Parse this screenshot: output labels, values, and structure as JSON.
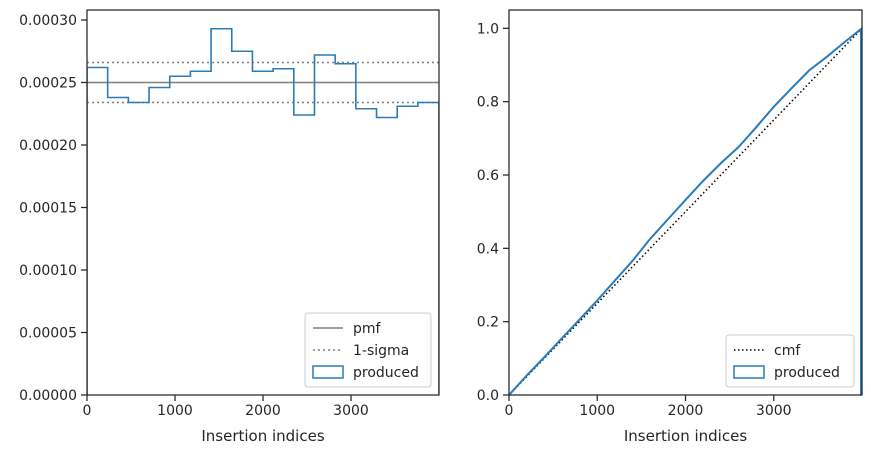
{
  "colors": {
    "produced": "#2b7bb9",
    "pmf": "#7f7f7f",
    "sigma": "#7f7f7f",
    "cmf": "#000000",
    "axes": "#262626"
  },
  "chart_data": [
    {
      "type": "histogram",
      "xlabel": "Insertion indices",
      "ylabel": "",
      "xlim": [
        0,
        4000
      ],
      "ylim": [
        0,
        0.000308
      ],
      "xticks": [
        0,
        1000,
        2000,
        3000
      ],
      "xtick_labels": [
        "0",
        "1000",
        "2000",
        "3000"
      ],
      "yticks": [
        0,
        5e-05,
        0.0001,
        0.00015,
        0.0002,
        0.00025,
        0.0003
      ],
      "ytick_labels": [
        "0.00000",
        "0.00005",
        "0.00010",
        "0.00015",
        "0.00020",
        "0.00025",
        "0.00030"
      ],
      "grid": false,
      "legend_position": "lower-right",
      "legend": [
        "pmf",
        "1-sigma",
        "produced"
      ],
      "pmf": 0.00025,
      "sigma_band": [
        0.000234,
        0.000266
      ],
      "produced": {
        "bin_edges": [
          0,
          235,
          470,
          705,
          940,
          1175,
          1410,
          1645,
          1880,
          2115,
          2350,
          2585,
          2820,
          3055,
          3290,
          3525,
          3760,
          4000
        ],
        "values": [
          0.000262,
          0.000238,
          0.000234,
          0.000246,
          0.000255,
          0.000259,
          0.000293,
          0.000275,
          0.000259,
          0.000261,
          0.000224,
          0.000272,
          0.000265,
          0.000229,
          0.000222,
          0.000231,
          0.000234
        ]
      }
    },
    {
      "type": "line",
      "xlabel": "Insertion indices",
      "ylabel": "",
      "xlim": [
        0,
        4000
      ],
      "ylim": [
        0,
        1.05
      ],
      "xticks": [
        0,
        1000,
        2000,
        3000
      ],
      "xtick_labels": [
        "0",
        "1000",
        "2000",
        "3000"
      ],
      "yticks": [
        0,
        0.2,
        0.4,
        0.6,
        0.8,
        1.0
      ],
      "ytick_labels": [
        "0.0",
        "0.2",
        "0.4",
        "0.6",
        "0.8",
        "1.0"
      ],
      "grid": false,
      "legend_position": "lower-right",
      "legend": [
        "cmf",
        "produced"
      ],
      "cmf": {
        "x": [
          0,
          4000
        ],
        "y": [
          0,
          1.0
        ]
      },
      "produced": {
        "x": [
          0,
          200,
          400,
          600,
          800,
          1000,
          1200,
          1400,
          1600,
          1800,
          2000,
          2200,
          2400,
          2600,
          2800,
          3000,
          3200,
          3400,
          3600,
          3800,
          4000
        ],
        "y": [
          0,
          0.053,
          0.103,
          0.155,
          0.206,
          0.258,
          0.312,
          0.366,
          0.426,
          0.479,
          0.532,
          0.584,
          0.632,
          0.676,
          0.73,
          0.786,
          0.836,
          0.885,
          0.922,
          0.962,
          1.0
        ]
      }
    }
  ]
}
